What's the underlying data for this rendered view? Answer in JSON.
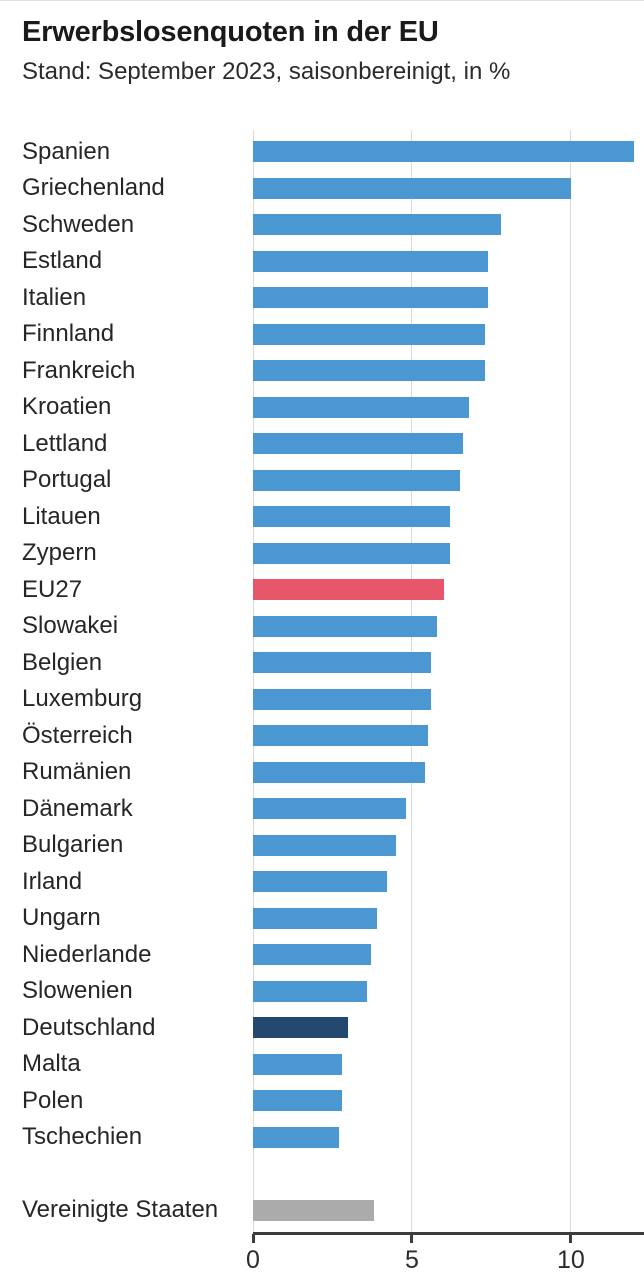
{
  "header": {
    "title": "Erwerbslosenquoten in der EU",
    "subtitle": "Stand: September 2023, saisonbereinigt, in %"
  },
  "chart_data": {
    "type": "bar",
    "orientation": "horizontal",
    "title": "Erwerbslosenquoten in der EU",
    "subtitle": "Stand: September 2023, saisonbereinigt, in %",
    "unit": "%",
    "xlabel": "",
    "ylabel": "",
    "xlim": [
      0,
      12.3
    ],
    "xticks": [
      0,
      5,
      10
    ],
    "grid": "vertical-gridlines-on",
    "legend": "none",
    "palette": {
      "default": "#4b97d2",
      "eu27": "#e7566a",
      "germany": "#23496e",
      "usa": "#ababab"
    },
    "rows": [
      {
        "label": "Spanien",
        "value": 12.0,
        "color": "default"
      },
      {
        "label": "Griechenland",
        "value": 10.0,
        "color": "default"
      },
      {
        "label": "Schweden",
        "value": 7.8,
        "color": "default"
      },
      {
        "label": "Estland",
        "value": 7.4,
        "color": "default"
      },
      {
        "label": "Italien",
        "value": 7.4,
        "color": "default"
      },
      {
        "label": "Finnland",
        "value": 7.3,
        "color": "default"
      },
      {
        "label": "Frankreich",
        "value": 7.3,
        "color": "default"
      },
      {
        "label": "Kroatien",
        "value": 6.8,
        "color": "default"
      },
      {
        "label": "Lettland",
        "value": 6.6,
        "color": "default"
      },
      {
        "label": "Portugal",
        "value": 6.5,
        "color": "default"
      },
      {
        "label": "Litauen",
        "value": 6.2,
        "color": "default"
      },
      {
        "label": "Zypern",
        "value": 6.2,
        "color": "default"
      },
      {
        "label": "EU27",
        "value": 6.0,
        "color": "eu27"
      },
      {
        "label": "Slowakei",
        "value": 5.8,
        "color": "default"
      },
      {
        "label": "Belgien",
        "value": 5.6,
        "color": "default"
      },
      {
        "label": "Luxemburg",
        "value": 5.6,
        "color": "default"
      },
      {
        "label": "Österreich",
        "value": 5.5,
        "color": "default"
      },
      {
        "label": "Rumänien",
        "value": 5.4,
        "color": "default"
      },
      {
        "label": "Dänemark",
        "value": 4.8,
        "color": "default"
      },
      {
        "label": "Bulgarien",
        "value": 4.5,
        "color": "default"
      },
      {
        "label": "Irland",
        "value": 4.2,
        "color": "default"
      },
      {
        "label": "Ungarn",
        "value": 3.9,
        "color": "default"
      },
      {
        "label": "Niederlande",
        "value": 3.7,
        "color": "default"
      },
      {
        "label": "Slowenien",
        "value": 3.6,
        "color": "default"
      },
      {
        "label": "Deutschland",
        "value": 3.0,
        "color": "germany"
      },
      {
        "label": "Malta",
        "value": 2.8,
        "color": "default"
      },
      {
        "label": "Polen",
        "value": 2.8,
        "color": "default"
      },
      {
        "label": "Tschechien",
        "value": 2.7,
        "color": "default"
      },
      {
        "label": "Vereinigte Staaten",
        "value": 3.8,
        "color": "usa",
        "gap_before": true
      }
    ]
  }
}
